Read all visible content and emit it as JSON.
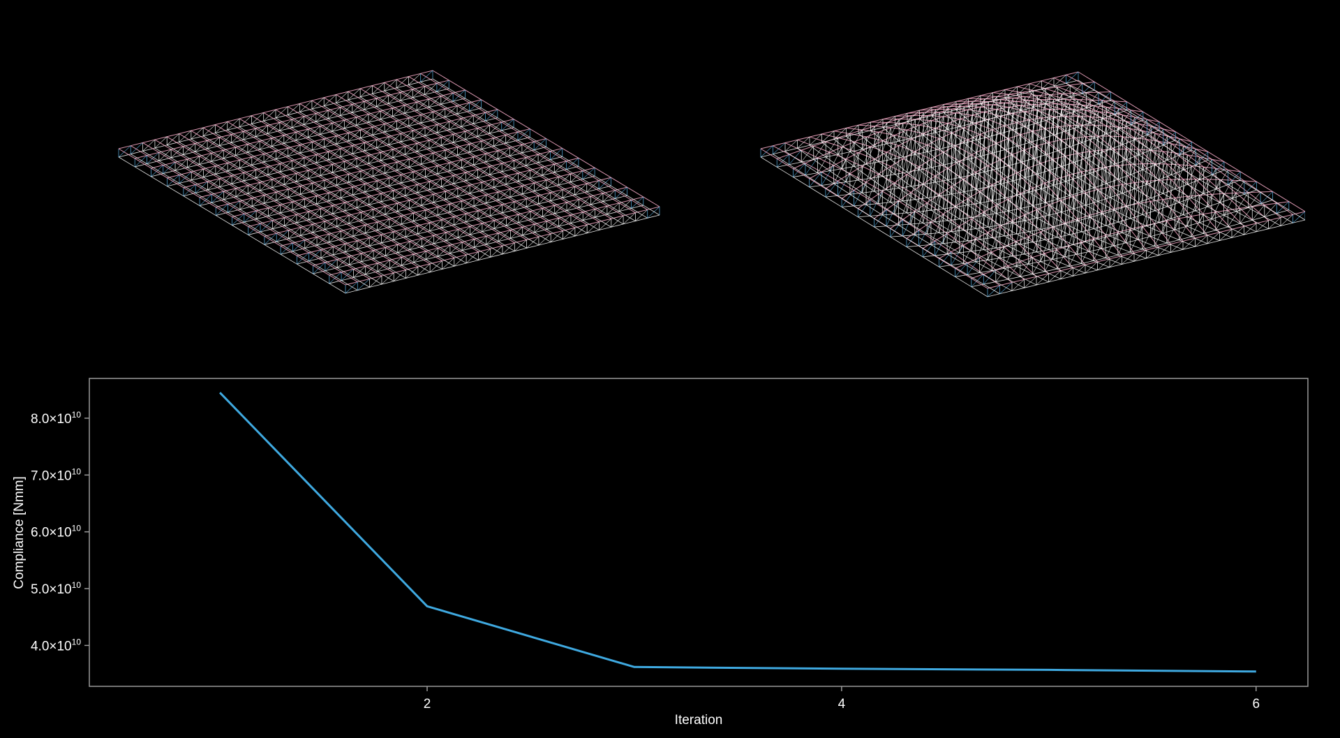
{
  "figure": {
    "left_panel_icon": "truss-structure-initial",
    "right_panel_icon": "truss-structure-optimized",
    "colors": {
      "background": "#000000",
      "tension": "#f2a7c3",
      "compression": "#5cb3e6",
      "neutral": "#ffffff"
    }
  },
  "chart_data": {
    "type": "line",
    "xlabel": "Iteration",
    "ylabel": "Compliance [Nmm]",
    "x": [
      1,
      2,
      3,
      4,
      5,
      6
    ],
    "series": [
      {
        "values": [
          84500000000,
          46900000000,
          36200000000,
          35900000000,
          35700000000,
          35400000000
        ],
        "color": "#3fa9e0"
      }
    ],
    "xlim": [
      0.37,
      6.25
    ],
    "ylim": [
      32800000000,
      87000000000
    ],
    "xticks": [
      2,
      4,
      6
    ],
    "xtick_labels": [
      "2",
      "4",
      "6"
    ],
    "yticks": [
      40000000000,
      50000000000,
      60000000000,
      70000000000,
      80000000000
    ],
    "ytick_mantissas": [
      "4.0×10",
      "5.0×10",
      "6.0×10",
      "7.0×10",
      "8.0×10"
    ],
    "ytick_exponent": "10",
    "grid": false,
    "legend": "none",
    "frame_color": "#9a9a9a"
  }
}
